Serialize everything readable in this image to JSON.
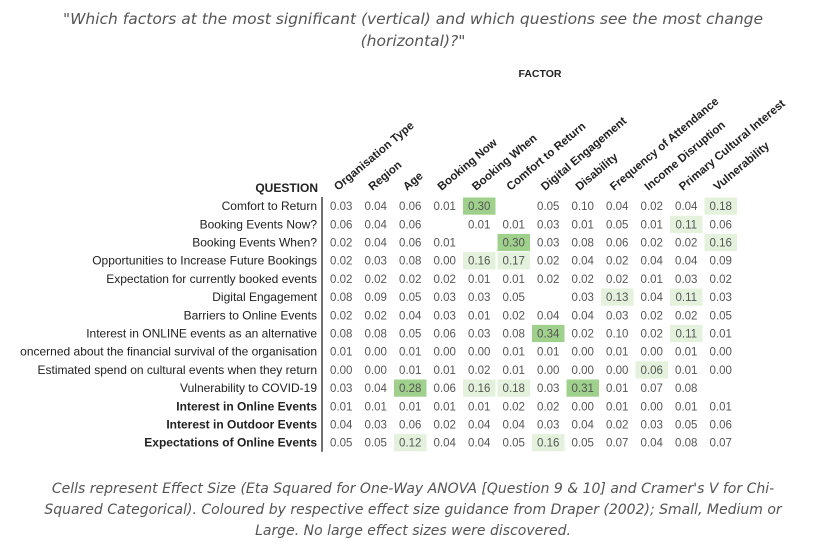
{
  "title": "\"Which factors at the most significant (vertical) and which questions see the most change (horizontal)?\"",
  "footer": "Cells represent Effect Size (Eta Squared for One-Way ANOVA [Question 9 & 10] and Cramer's V for Chi-Squared Categorical). Coloured by respective effect size guidance from Draper (2002); Small, Medium or Large. No large effect sizes were discovered.",
  "colors": {
    "small": "#e4f2dd",
    "medium": "#9fd08c",
    "text": "#555555",
    "axis": "#222222"
  },
  "chart_data": {
    "type": "heatmap",
    "x_axis_label": "FACTOR",
    "y_axis_label": "QUESTION",
    "columns": [
      "Organisation Type",
      "Region",
      "Age",
      "Booking Now",
      "Booking When",
      "Comfort to Return",
      "Digital Engagement",
      "Disability",
      "Frequency of Attendance",
      "Income Disruption",
      "Primary Cultural Interest",
      "Vulnerability"
    ],
    "rows": [
      {
        "label": "Comfort to Return",
        "bold": false,
        "values": [
          "0.03",
          "0.04",
          "0.06",
          "0.01",
          "0.30",
          null,
          "0.05",
          "0.10",
          "0.04",
          "0.02",
          "0.04",
          "0.18"
        ],
        "shade": [
          null,
          null,
          null,
          null,
          "medium",
          null,
          null,
          null,
          null,
          null,
          null,
          "small"
        ]
      },
      {
        "label": "Booking Events Now?",
        "bold": false,
        "values": [
          "0.06",
          "0.04",
          "0.06",
          null,
          "0.01",
          "0.01",
          "0.03",
          "0.01",
          "0.05",
          "0.01",
          "0.11",
          "0.06"
        ],
        "shade": [
          null,
          null,
          null,
          null,
          null,
          null,
          null,
          null,
          null,
          null,
          "small",
          null
        ]
      },
      {
        "label": "Booking Events When?",
        "bold": false,
        "values": [
          "0.02",
          "0.04",
          "0.06",
          "0.01",
          null,
          "0.30",
          "0.03",
          "0.08",
          "0.06",
          "0.02",
          "0.02",
          "0.16"
        ],
        "shade": [
          null,
          null,
          null,
          null,
          null,
          "medium",
          null,
          null,
          null,
          null,
          null,
          "small"
        ]
      },
      {
        "label": "Opportunities to Increase Future Bookings",
        "bold": false,
        "values": [
          "0.02",
          "0.03",
          "0.08",
          "0.00",
          "0.16",
          "0.17",
          "0.02",
          "0.04",
          "0.02",
          "0.04",
          "0.04",
          "0.09"
        ],
        "shade": [
          null,
          null,
          null,
          null,
          "small",
          "small",
          null,
          null,
          null,
          null,
          null,
          null
        ]
      },
      {
        "label": "Expectation for currently booked events",
        "bold": false,
        "values": [
          "0.02",
          "0.02",
          "0.02",
          "0.02",
          "0.01",
          "0.01",
          "0.02",
          "0.02",
          "0.02",
          "0.01",
          "0.03",
          "0.02"
        ],
        "shade": [
          null,
          null,
          null,
          null,
          null,
          null,
          null,
          null,
          null,
          null,
          null,
          null
        ]
      },
      {
        "label": "Digital Engagement",
        "bold": false,
        "values": [
          "0.08",
          "0.09",
          "0.05",
          "0.03",
          "0.03",
          "0.05",
          null,
          "0.03",
          "0.13",
          "0.04",
          "0.11",
          "0.03"
        ],
        "shade": [
          null,
          null,
          null,
          null,
          null,
          null,
          null,
          null,
          "small",
          null,
          "small",
          null
        ]
      },
      {
        "label": "Barriers to Online Events",
        "bold": false,
        "values": [
          "0.02",
          "0.02",
          "0.04",
          "0.03",
          "0.01",
          "0.02",
          "0.04",
          "0.04",
          "0.03",
          "0.02",
          "0.02",
          "0.05"
        ],
        "shade": [
          null,
          null,
          null,
          null,
          null,
          null,
          null,
          null,
          null,
          null,
          null,
          null
        ]
      },
      {
        "label": "Interest in ONLINE events as an alternative",
        "bold": false,
        "values": [
          "0.08",
          "0.08",
          "0.05",
          "0.06",
          "0.03",
          "0.08",
          "0.34",
          "0.02",
          "0.10",
          "0.02",
          "0.11",
          "0.01"
        ],
        "shade": [
          null,
          null,
          null,
          null,
          null,
          null,
          "medium",
          null,
          null,
          null,
          "small",
          null
        ]
      },
      {
        "label": "oncerned about the financial survival of the organisation",
        "bold": false,
        "values": [
          "0.01",
          "0.00",
          "0.01",
          "0.00",
          "0.00",
          "0.01",
          "0.01",
          "0.00",
          "0.01",
          "0.00",
          "0.01",
          "0.00"
        ],
        "shade": [
          null,
          null,
          null,
          null,
          null,
          null,
          null,
          null,
          null,
          null,
          null,
          null
        ]
      },
      {
        "label": "Estimated spend on cultural events when they return",
        "bold": false,
        "values": [
          "0.00",
          "0.00",
          "0.01",
          "0.01",
          "0.02",
          "0.01",
          "0.00",
          "0.00",
          "0.00",
          "0.06",
          "0.01",
          "0.00"
        ],
        "shade": [
          null,
          null,
          null,
          null,
          null,
          null,
          null,
          null,
          null,
          "small",
          null,
          null
        ]
      },
      {
        "label": "Vulnerability to COVID-19",
        "bold": false,
        "values": [
          "0.03",
          "0.04",
          "0.28",
          "0.06",
          "0.16",
          "0.18",
          "0.03",
          "0.31",
          "0.01",
          "0.07",
          "0.08",
          null
        ],
        "shade": [
          null,
          null,
          "medium",
          null,
          "small",
          "small",
          null,
          "medium",
          null,
          null,
          null,
          null
        ]
      },
      {
        "label": "Interest in Online Events",
        "bold": true,
        "values": [
          "0.01",
          "0.01",
          "0.01",
          "0.01",
          "0.01",
          "0.02",
          "0.02",
          "0.00",
          "0.01",
          "0.00",
          "0.01",
          "0.01"
        ],
        "shade": [
          null,
          null,
          null,
          null,
          null,
          null,
          null,
          null,
          null,
          null,
          null,
          null
        ]
      },
      {
        "label": "Interest in Outdoor Events",
        "bold": true,
        "values": [
          "0.04",
          "0.03",
          "0.06",
          "0.02",
          "0.04",
          "0.04",
          "0.03",
          "0.04",
          "0.02",
          "0.03",
          "0.05",
          "0.06"
        ],
        "shade": [
          null,
          null,
          null,
          null,
          null,
          null,
          null,
          null,
          null,
          null,
          null,
          null
        ]
      },
      {
        "label": "Expectations of Online Events",
        "bold": true,
        "values": [
          "0.05",
          "0.05",
          "0.12",
          "0.04",
          "0.04",
          "0.05",
          "0.16",
          "0.05",
          "0.07",
          "0.04",
          "0.08",
          "0.07"
        ],
        "shade": [
          null,
          null,
          "small",
          null,
          null,
          null,
          "small",
          null,
          null,
          null,
          null,
          null
        ]
      }
    ]
  }
}
